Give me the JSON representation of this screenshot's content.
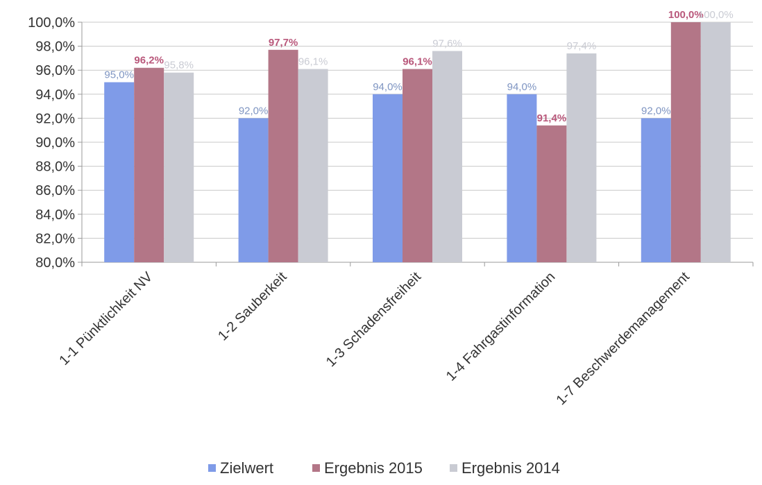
{
  "chart_data": {
    "type": "bar",
    "categories": [
      "1-1 Pünktlichkeit NV",
      "1-2 Sauberkeit",
      "1-3 Schadensfreiheit",
      "1-4 Fahrgastinformation",
      "1-7 Beschwerdemanagement"
    ],
    "series": [
      {
        "name": "Zielwert",
        "values": [
          95.0,
          92.0,
          94.0,
          94.0,
          92.0
        ],
        "labels": [
          "95,0%",
          "92,0%",
          "94,0%",
          "94,0%",
          "92,0%"
        ],
        "color": "#7f9be8",
        "label_color": "#7f95c2"
      },
      {
        "name": "Ergebnis 2015",
        "values": [
          96.2,
          97.7,
          96.1,
          91.4,
          100.0
        ],
        "labels": [
          "96,2%",
          "97,7%",
          "96,1%",
          "91,4%",
          "100,0%"
        ],
        "color": "#b37687",
        "label_color": "#b9587b"
      },
      {
        "name": "Ergebnis 2014",
        "values": [
          95.8,
          96.1,
          97.6,
          97.4,
          100.0
        ],
        "labels": [
          "95,8%",
          "96,1%",
          "97,6%",
          "97,4%",
          "100,0%"
        ],
        "color": "#c9cbd3",
        "label_color": "#c9cbd3"
      }
    ],
    "y_ticks": [
      "80,0%",
      "82,0%",
      "84,0%",
      "86,0%",
      "88,0%",
      "90,0%",
      "92,0%",
      "94,0%",
      "96,0%",
      "98,0%",
      "100,0%"
    ],
    "ylim": [
      80,
      100
    ],
    "grid": true,
    "legend_position": "bottom"
  }
}
